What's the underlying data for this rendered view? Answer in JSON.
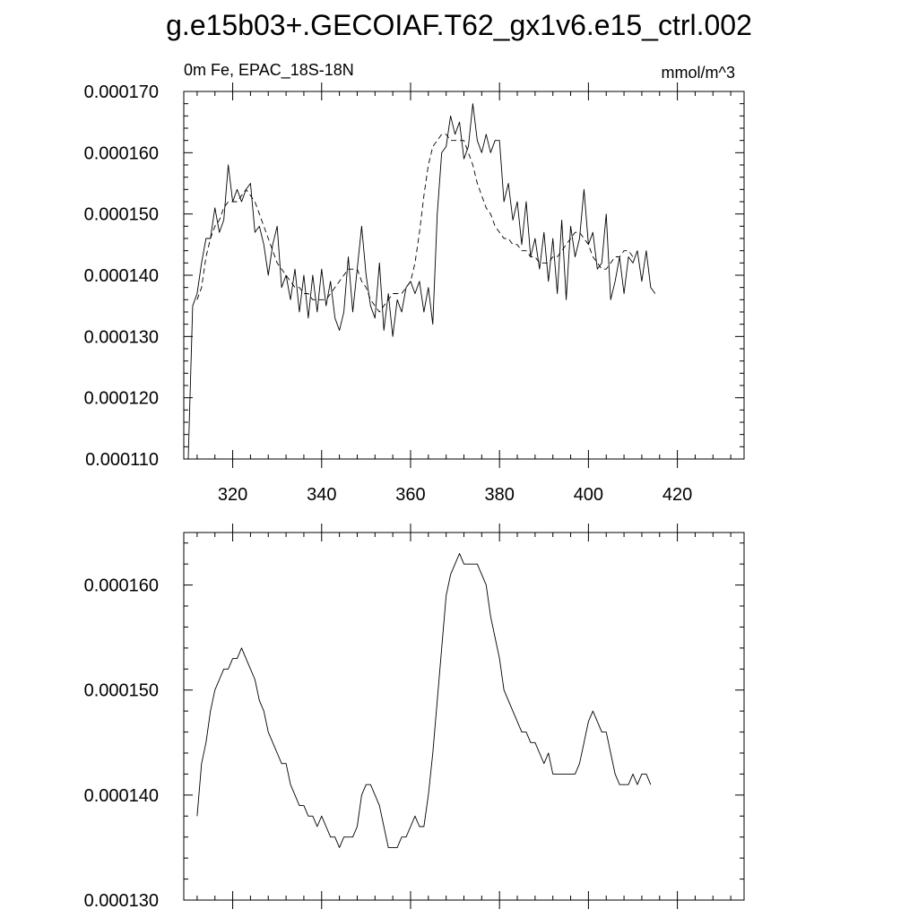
{
  "title": "g.e15b03+.GECOIAF.T62_gx1v6.e15_ctrl.002",
  "chart_data": [
    {
      "type": "line",
      "left_label": "0m Fe, EPAC_18S-18N",
      "right_label": "mmol/m^3",
      "xlim": [
        309,
        435
      ],
      "ylim": [
        0.00011,
        0.00017
      ],
      "x_ticks": [
        320,
        340,
        360,
        380,
        400,
        420
      ],
      "x_tick_labels": [
        "320",
        "340",
        "360",
        "380",
        "400",
        "420"
      ],
      "y_ticks": [
        0.00011,
        0.00012,
        0.00013,
        0.00014,
        0.00015,
        0.00016,
        0.00017
      ],
      "y_tick_labels": [
        "0.000110",
        "0.000120",
        "0.000130",
        "0.000140",
        "0.000150",
        "0.000160",
        "0.000170"
      ],
      "grid": false,
      "series": [
        {
          "style": "solid",
          "color": "#000000",
          "x_start": 310,
          "x_step": 1,
          "values": [
            0.00011,
            0.000135,
            0.000137,
            0.000142,
            0.000146,
            0.000146,
            0.000151,
            0.000147,
            0.000149,
            0.000158,
            0.000152,
            0.000154,
            0.000152,
            0.000154,
            0.000155,
            0.000147,
            0.000148,
            0.000145,
            0.00014,
            0.000145,
            0.000148,
            0.000138,
            0.00014,
            0.000136,
            0.000141,
            0.000134,
            0.00014,
            0.000133,
            0.00014,
            0.000134,
            0.000141,
            0.000135,
            0.000139,
            0.000133,
            0.000131,
            0.000134,
            0.000143,
            0.000134,
            0.000141,
            0.000148,
            0.00014,
            0.000135,
            0.000133,
            0.000142,
            0.000131,
            0.000137,
            0.00013,
            0.000136,
            0.000134,
            0.000138,
            0.000139,
            0.000137,
            0.000139,
            0.000134,
            0.000138,
            0.000132,
            0.00015,
            0.00016,
            0.000161,
            0.000166,
            0.000163,
            0.000165,
            0.000159,
            0.000161,
            0.000168,
            0.000162,
            0.00016,
            0.000163,
            0.00016,
            0.000162,
            0.000162,
            0.000152,
            0.000155,
            0.000149,
            0.000152,
            0.000145,
            0.000152,
            0.000143,
            0.000146,
            0.000141,
            0.000147,
            0.000139,
            0.000146,
            0.000137,
            0.000149,
            0.000136,
            0.000148,
            0.000143,
            0.000146,
            0.000154,
            0.000145,
            0.000147,
            0.000141,
            0.000142,
            0.00015,
            0.000136,
            0.000139,
            0.000143,
            0.000137,
            0.000143,
            0.000142,
            0.000144,
            0.000139,
            0.000144,
            0.000138,
            0.000137
          ]
        },
        {
          "style": "dashed",
          "color": "#000000",
          "x_start": 312,
          "x_step": 1,
          "values": [
            0.000136,
            0.000138,
            0.000143,
            0.000146,
            0.000148,
            0.000149,
            0.000151,
            0.000152,
            0.000152,
            0.000152,
            0.000153,
            0.000154,
            0.000153,
            0.000152,
            0.00015,
            0.000148,
            0.000146,
            0.000144,
            0.000142,
            0.000141,
            0.00014,
            0.000139,
            0.000138,
            0.000138,
            0.000137,
            0.000137,
            0.000136,
            0.000136,
            0.000136,
            0.000136,
            0.000137,
            0.000138,
            0.000139,
            0.00014,
            0.000141,
            0.000141,
            0.000141,
            0.000139,
            0.000138,
            0.000136,
            0.000135,
            0.000134,
            0.000135,
            0.000136,
            0.000137,
            0.000137,
            0.000137,
            0.000138,
            0.000139,
            0.000142,
            0.000147,
            0.000153,
            0.000158,
            0.000161,
            0.000162,
            0.000163,
            0.000163,
            0.000162,
            0.000162,
            0.000162,
            0.000162,
            0.00016,
            0.000158,
            0.000155,
            0.000153,
            0.000151,
            0.00015,
            0.000148,
            0.000147,
            0.000146,
            0.000146,
            0.000145,
            0.000145,
            0.000144,
            0.000144,
            0.000143,
            0.000143,
            0.000142,
            0.000142,
            0.000142,
            0.000143,
            0.000143,
            0.000144,
            0.000145,
            0.000146,
            0.000147,
            0.000147,
            0.000146,
            0.000145,
            0.000143,
            0.000142,
            0.000141,
            0.000141,
            0.000142,
            0.000143,
            0.000143,
            0.000144,
            0.000144,
            0.000143
          ]
        }
      ]
    },
    {
      "type": "line",
      "xlim": [
        309,
        435
      ],
      "ylim": [
        0.00013,
        0.000165
      ],
      "x_ticks": [
        320,
        340,
        360,
        380,
        400,
        420
      ],
      "x_tick_labels": [],
      "y_ticks": [
        0.00013,
        0.00014,
        0.00015,
        0.00016
      ],
      "y_tick_labels": [
        "0.000130",
        "0.000140",
        "0.000150",
        "0.000160"
      ],
      "grid": false,
      "series": [
        {
          "style": "solid",
          "color": "#000000",
          "x_start": 312,
          "x_step": 1,
          "values": [
            0.000138,
            0.000143,
            0.000145,
            0.000148,
            0.00015,
            0.000151,
            0.000152,
            0.000152,
            0.000153,
            0.000153,
            0.000154,
            0.000153,
            0.000152,
            0.000151,
            0.000149,
            0.000148,
            0.000146,
            0.000145,
            0.000144,
            0.000143,
            0.000143,
            0.000141,
            0.00014,
            0.000139,
            0.000139,
            0.000138,
            0.000138,
            0.000137,
            0.000138,
            0.000137,
            0.000136,
            0.000136,
            0.000135,
            0.000136,
            0.000136,
            0.000136,
            0.000137,
            0.00014,
            0.000141,
            0.000141,
            0.00014,
            0.000139,
            0.000137,
            0.000135,
            0.000135,
            0.000135,
            0.000136,
            0.000136,
            0.000137,
            0.000138,
            0.000137,
            0.000137,
            0.00014,
            0.000144,
            0.000149,
            0.000154,
            0.000159,
            0.000161,
            0.000162,
            0.000163,
            0.000162,
            0.000162,
            0.000162,
            0.000162,
            0.000161,
            0.00016,
            0.000157,
            0.000155,
            0.000153,
            0.00015,
            0.000149,
            0.000148,
            0.000147,
            0.000146,
            0.000146,
            0.000145,
            0.000145,
            0.000144,
            0.000143,
            0.000144,
            0.000142,
            0.000142,
            0.000142,
            0.000142,
            0.000142,
            0.000142,
            0.000143,
            0.000145,
            0.000147,
            0.000148,
            0.000147,
            0.000146,
            0.000146,
            0.000144,
            0.000142,
            0.000141,
            0.000141,
            0.000141,
            0.000142,
            0.000141,
            0.000142,
            0.000142,
            0.000141
          ]
        }
      ]
    }
  ]
}
